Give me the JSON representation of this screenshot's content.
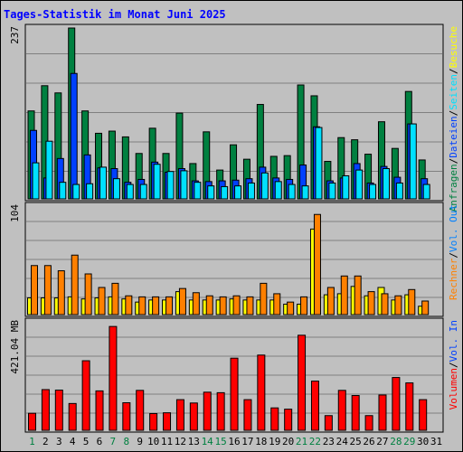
{
  "chart_data": {
    "type": "bar",
    "title": "Tages-Statistik im Monat Juni 2025",
    "colors": {
      "title": "#0000ff",
      "hits": "#008040",
      "files": "#0040ff",
      "pages": "#00e0ff",
      "visits": "#ff8000",
      "sites": "#ffff00",
      "volume_in": "#ff0000",
      "volume_out": "#0080ff",
      "weekend_label": "#008040",
      "panel_bg": "#c0c0c0",
      "gridline": "#808080"
    },
    "categories": [
      "1",
      "2",
      "3",
      "4",
      "5",
      "6",
      "7",
      "8",
      "9",
      "10",
      "11",
      "12",
      "13",
      "14",
      "15",
      "16",
      "17",
      "18",
      "19",
      "20",
      "21",
      "22",
      "23",
      "24",
      "25",
      "26",
      "27",
      "28",
      "29",
      "30",
      "31"
    ],
    "weekend_days": [
      "1",
      "7",
      "8",
      "14",
      "15",
      "21",
      "22",
      "28",
      "29"
    ],
    "panels": [
      {
        "id": "requests",
        "max_label": "237",
        "ylim": [
          0,
          237
        ],
        "right_label": [
          {
            "text": "Anfragen",
            "color": "#008040"
          },
          {
            "text": "/",
            "color": "#000000"
          },
          {
            "text": "Dateien",
            "color": "#0040ff"
          },
          {
            "text": "/",
            "color": "#000000"
          },
          {
            "text": "Seiten",
            "color": "#00e0ff"
          },
          {
            "text": "/",
            "color": "#000000"
          },
          {
            "text": "Besuche",
            "color": "#ffff00"
          }
        ],
        "series": [
          {
            "name": "Anfragen",
            "color_key": "hits",
            "values": [
              122,
              157,
              147,
              237,
              122,
              91,
              94,
              86,
              63,
              98,
              63,
              119,
              49,
              93,
              40,
              75,
              55,
              131,
              59,
              60,
              158,
              143,
              52,
              85,
              82,
              62,
              107,
              70,
              149,
              54,
              null
            ]
          },
          {
            "name": "Dateien",
            "color_key": "files",
            "values": [
              95,
              29,
              56,
              174,
              61,
              43,
              42,
              23,
              27,
              51,
              37,
              42,
              25,
              24,
              25,
              26,
              28,
              44,
              29,
              27,
              47,
              100,
              25,
              29,
              49,
              22,
              45,
              30,
              104,
              28,
              null
            ]
          },
          {
            "name": "Seiten",
            "color_key": "pages",
            "values": [
              50,
              80,
              23,
              20,
              21,
              44,
              28,
              20,
              20,
              48,
              38,
              39,
              23,
              18,
              17,
              18,
              22,
              36,
              24,
              20,
              18,
              99,
              22,
              32,
              40,
              20,
              42,
              22,
              104,
              20,
              null
            ]
          }
        ]
      },
      {
        "id": "visits",
        "max_label": "104",
        "ylim": [
          0,
          104
        ],
        "right_label": [
          {
            "text": "Rechner",
            "color": "#ff8000"
          },
          {
            "text": "/",
            "color": "#000000"
          },
          {
            "text": "Vol. Out",
            "color": "#0080ff"
          }
        ],
        "series": [
          {
            "name": "Besuche",
            "color_key": "sites",
            "values": [
              16,
              16,
              16,
              17,
              15,
              16,
              17,
              15,
              12,
              14,
              14,
              22,
              14,
              14,
              14,
              15,
              14,
              14,
              14,
              10,
              10,
              82,
              19,
              20,
              27,
              18,
              26,
              14,
              19,
              8,
              null
            ]
          },
          {
            "name": "Rechner",
            "color_key": "visits",
            "values": [
              47,
              47,
              42,
              57,
              39,
              26,
              30,
              18,
              17,
              17,
              17,
              25,
              21,
              18,
              17,
              18,
              17,
              30,
              20,
              12,
              17,
              96,
              26,
              37,
              37,
              22,
              20,
              18,
              24,
              13,
              null
            ]
          }
        ]
      },
      {
        "id": "volume",
        "max_label": "421.04 MB",
        "ylim": [
          0,
          421.04
        ],
        "right_label": [
          {
            "text": "Volumen",
            "color": "#ff0000"
          },
          {
            "text": "/",
            "color": "#000000"
          },
          {
            "text": "Vol. In",
            "color": "#0040ff"
          }
        ],
        "series": [
          {
            "name": "Volumen",
            "color_key": "volume_in",
            "values": [
              66,
              158,
              156,
              104,
              270,
              153,
              403,
              107,
              155,
              65,
              68,
              119,
              106,
              148,
              146,
              280,
              119,
              292,
              87,
              82,
              369,
              191,
              57,
              155,
              135,
              57,
              137,
              205,
              184,
              119,
              null
            ]
          }
        ]
      }
    ]
  }
}
